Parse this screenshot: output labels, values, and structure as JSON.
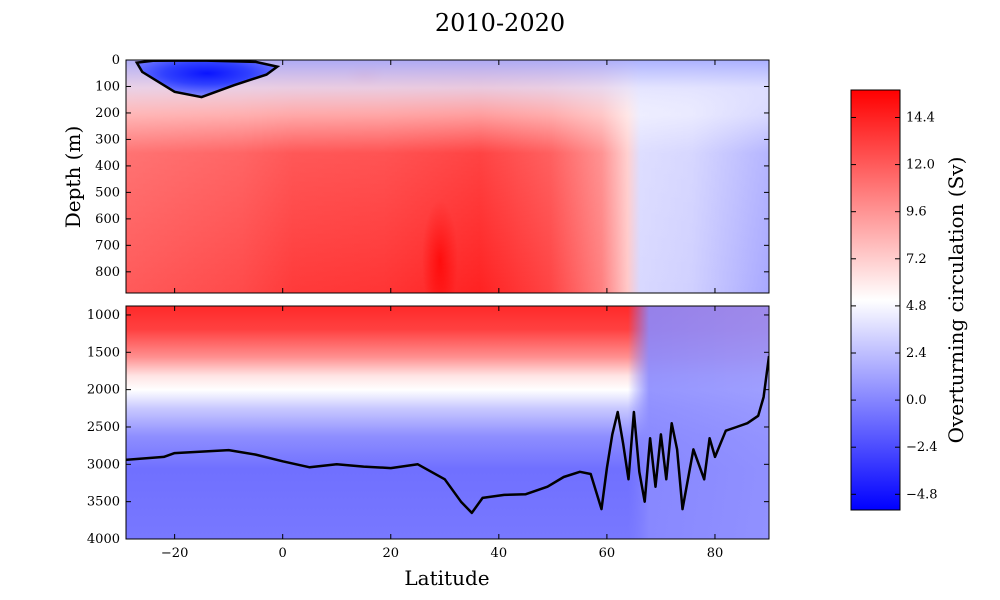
{
  "chart_data": {
    "type": "heatmap",
    "title": "2010-2020",
    "xlabel": "Latitude",
    "ylabel": "Depth (m)",
    "xlim": [
      -29,
      90
    ],
    "x_ticks": [
      -20,
      0,
      20,
      40,
      60,
      80
    ],
    "x_tick_labels": [
      "−20",
      "0",
      "20",
      "40",
      "60",
      "80"
    ],
    "panels": [
      {
        "name": "upper",
        "ylim": [
          880,
          0
        ],
        "y_ticks": [
          0,
          100,
          200,
          300,
          400,
          500,
          600,
          700,
          800
        ],
        "y_tick_labels": [
          "0",
          "100",
          "200",
          "300",
          "400",
          "500",
          "600",
          "700",
          "800"
        ]
      },
      {
        "name": "lower",
        "ylim": [
          4000,
          880
        ],
        "y_ticks": [
          1000,
          1500,
          2000,
          2500,
          3000,
          3500,
          4000
        ],
        "y_tick_labels": [
          "1000",
          "1500",
          "2000",
          "2500",
          "3000",
          "3500",
          "4000"
        ]
      }
    ],
    "colorbar": {
      "label": "Overturning circulation (Sv)",
      "range": [
        -5.6,
        15.8
      ],
      "ticks": [
        -4.8,
        -2.4,
        0.0,
        2.4,
        4.8,
        7.2,
        9.6,
        12.0,
        14.4
      ],
      "tick_labels": [
        "−4.8",
        "−2.4",
        "0.0",
        "2.4",
        "4.8",
        "7.2",
        "9.6",
        "12.0",
        "14.4"
      ],
      "colors": {
        "min": "#0000ff",
        "mid": "#ffffff",
        "max": "#ff0000"
      }
    },
    "zero_contour": {
      "upper_blob": [
        [
          -27,
          10
        ],
        [
          -24,
          3
        ],
        [
          -15,
          2
        ],
        [
          -5,
          7
        ],
        [
          -1,
          25
        ],
        [
          -3,
          55
        ],
        [
          -9,
          95
        ],
        [
          -15,
          140
        ],
        [
          -20,
          120
        ],
        [
          -26,
          45
        ],
        [
          -27,
          10
        ]
      ],
      "lower_line": [
        [
          -29,
          2940
        ],
        [
          -22,
          2900
        ],
        [
          -20,
          2850
        ],
        [
          -15,
          2830
        ],
        [
          -10,
          2810
        ],
        [
          -5,
          2870
        ],
        [
          0,
          2960
        ],
        [
          5,
          3040
        ],
        [
          10,
          3000
        ],
        [
          15,
          3030
        ],
        [
          20,
          3050
        ],
        [
          25,
          3000
        ],
        [
          30,
          3200
        ],
        [
          33,
          3500
        ],
        [
          35,
          3650
        ],
        [
          37,
          3450
        ],
        [
          41,
          3410
        ],
        [
          45,
          3400
        ],
        [
          49,
          3300
        ],
        [
          52,
          3170
        ],
        [
          55,
          3100
        ],
        [
          57,
          3130
        ],
        [
          59,
          3600
        ],
        [
          60,
          3050
        ],
        [
          61,
          2600
        ],
        [
          62,
          2300
        ],
        [
          63,
          2720
        ],
        [
          64,
          3200
        ],
        [
          65,
          2300
        ],
        [
          66,
          3100
        ],
        [
          67,
          3500
        ],
        [
          68,
          2650
        ],
        [
          69,
          3300
        ],
        [
          70,
          2600
        ],
        [
          71,
          3200
        ],
        [
          72,
          2450
        ],
        [
          73,
          2800
        ],
        [
          74,
          3600
        ],
        [
          76,
          2800
        ],
        [
          78,
          3200
        ],
        [
          79,
          2650
        ],
        [
          80,
          2900
        ],
        [
          82,
          2550
        ],
        [
          84,
          2500
        ],
        [
          86,
          2450
        ],
        [
          88,
          2350
        ],
        [
          89,
          2100
        ],
        [
          90,
          1550
        ]
      ]
    }
  }
}
